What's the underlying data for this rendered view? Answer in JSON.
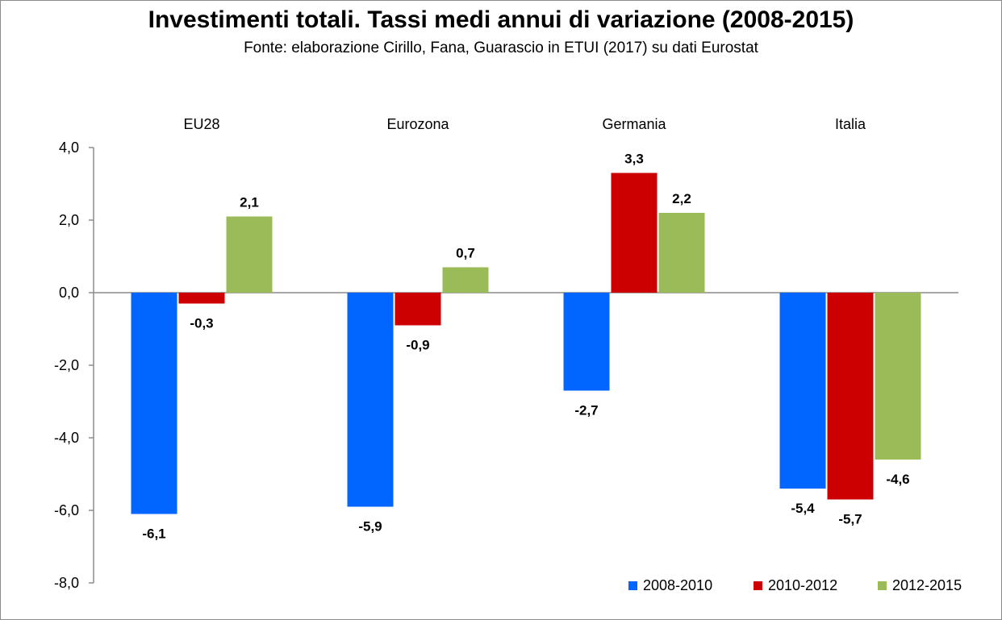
{
  "chart_data": {
    "type": "bar",
    "title": "Investimenti totali. Tassi medi annui di variazione (2008-2015)",
    "subtitle": "Fonte: elaborazione Cirillo, Fana, Guarascio in ETUI (2017) su dati Eurostat",
    "categories": [
      "EU28",
      "Eurozona",
      "Germania",
      "Italia"
    ],
    "series": [
      {
        "name": "2008-2010",
        "color": "#0066ff",
        "values": [
          -6.1,
          -5.9,
          -2.7,
          -5.4
        ],
        "labels": [
          "-6,1",
          "-5,9",
          "-2,7",
          "-5,4"
        ]
      },
      {
        "name": "2010-2012",
        "color": "#cc0000",
        "values": [
          -0.3,
          -0.9,
          3.3,
          -5.7
        ],
        "labels": [
          "-0,3",
          "-0,9",
          "3,3",
          "-5,7"
        ]
      },
      {
        "name": "2012-2015",
        "color": "#9bbb59",
        "values": [
          2.1,
          0.7,
          2.2,
          -4.6
        ],
        "labels": [
          "2,1",
          "0,7",
          "2,2",
          "-4,6"
        ]
      }
    ],
    "ylim": [
      -8,
      4
    ],
    "yticks": [
      4,
      2,
      0,
      -2,
      -4,
      -6,
      -8
    ],
    "ytick_labels": [
      "4,0",
      "2,0",
      "0,0",
      "-2,0",
      "-4,0",
      "-6,0",
      "-8,0"
    ],
    "xlabel": "",
    "ylabel": "",
    "grid": false,
    "legend_position": "bottom-right",
    "category_labels_position": "top"
  }
}
